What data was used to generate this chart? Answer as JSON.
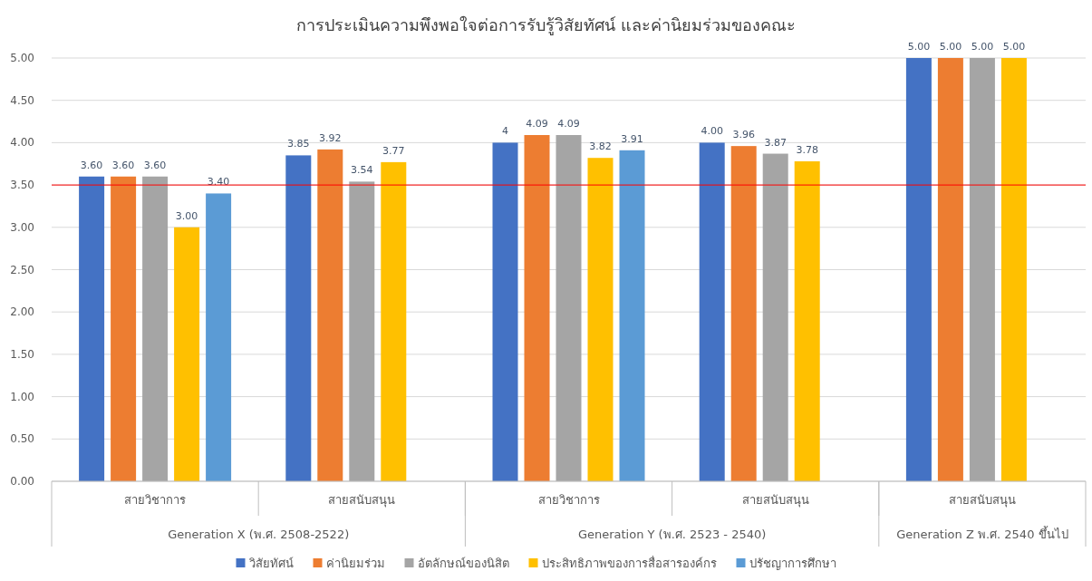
{
  "chart_data": {
    "type": "bar",
    "title": "การประเมินความพึงพอใจต่อการรับรู้วิสัยทัศน์ และค่านิยมร่วมของคณะ",
    "categories": [
      "สายวิชาการ",
      "สายสนับสนุน",
      "สายวิชาการ",
      "สายสนับสนุน",
      "สายสนับสนุน"
    ],
    "annotations": [
      "Generation X (พ.ศ. 2508-2522)",
      "Generation Y (พ.ศ. 2523 - 2540)",
      "Generation Z พ.ศ. 2540 ขึ้นไป"
    ],
    "series": [
      {
        "name": "วิสัยทัศน์",
        "color": "#4472c4",
        "values": [
          3.6,
          3.85,
          4,
          4.0,
          5.0
        ],
        "value_labels": [
          "3.60",
          "3.85",
          "4",
          "4.00",
          "5.00"
        ]
      },
      {
        "name": "ค่านิยมร่วม",
        "color": "#ed7d31",
        "values": [
          3.6,
          3.92,
          4.09,
          3.96,
          5.0
        ],
        "value_labels": [
          "3.60",
          "3.92",
          "4.09",
          "3.96",
          "5.00"
        ]
      },
      {
        "name": "อัตลักษณ์ของนิสิต",
        "color": "#a5a5a5",
        "values": [
          3.6,
          3.54,
          4.09,
          3.87,
          5.0
        ],
        "value_labels": [
          "3.60",
          "3.54",
          "4.09",
          "3.87",
          "5.00"
        ]
      },
      {
        "name": "ประสิทธิภาพของการสื่อสารองค์กร",
        "color": "#ffc000",
        "values": [
          3.0,
          3.77,
          3.82,
          3.78,
          5.0
        ],
        "value_labels": [
          "3.00",
          "3.77",
          "3.82",
          "3.78",
          "5.00"
        ]
      },
      {
        "name": "ปรัชญาการศึกษา",
        "color": "#5b9bd5",
        "values": [
          3.4,
          null,
          3.91,
          null,
          null
        ],
        "value_labels": [
          "3.40",
          null,
          "3.91",
          null,
          null
        ]
      }
    ],
    "ylim": [
      0,
      5
    ],
    "yticks": [
      {
        "value": 0,
        "label": "0.00"
      },
      {
        "value": 0.5,
        "label": "0.50"
      },
      {
        "value": 1,
        "label": "1.00"
      },
      {
        "value": 1.5,
        "label": "1.50"
      },
      {
        "value": 2,
        "label": "2.00"
      },
      {
        "value": 2.5,
        "label": "2.50"
      },
      {
        "value": 3,
        "label": "3.00"
      },
      {
        "value": 3.5,
        "label": "3.50"
      },
      {
        "value": 4,
        "label": "4.00"
      },
      {
        "value": 4.5,
        "label": "4.50"
      },
      {
        "value": 5,
        "label": "5.00"
      }
    ],
    "ref_lines": [
      {
        "axis": "y",
        "value": 3.5,
        "color": "#ff0000"
      }
    ],
    "grid": "y",
    "legend": "bottom"
  }
}
